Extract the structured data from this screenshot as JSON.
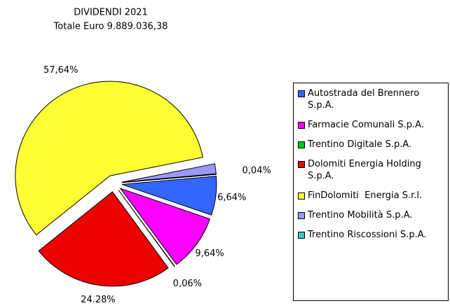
{
  "chart_data": {
    "type": "pie",
    "title": "DIVIDENDI 2021",
    "subtitle": "Totale Euro 9.889.036,38",
    "categories": [
      "Autostrada del Brennero S.p.A.",
      "Farmacie Comunali S.p.A.",
      "Trentino Digitale S.p.A.",
      "Dolomiti Energia Holding S.p.A.",
      "FinDolomiti  Energia S.r.l.",
      "Trentino Mobilità S.p.A.",
      "Trentino Riscossioni S.p.A."
    ],
    "values": [
      6.64,
      9.64,
      0.06,
      24.28,
      57.64,
      1.7,
      0.04
    ],
    "value_labels": [
      "6,64%",
      "9,64%",
      "0,06%",
      "24.28%",
      "57,64%",
      null,
      "0,04%"
    ],
    "colors": [
      "#3366ff",
      "#ff00ff",
      "#00cc00",
      "#ee0000",
      "#ffff33",
      "#9999ff",
      "#33cccc"
    ],
    "legend": "right"
  }
}
